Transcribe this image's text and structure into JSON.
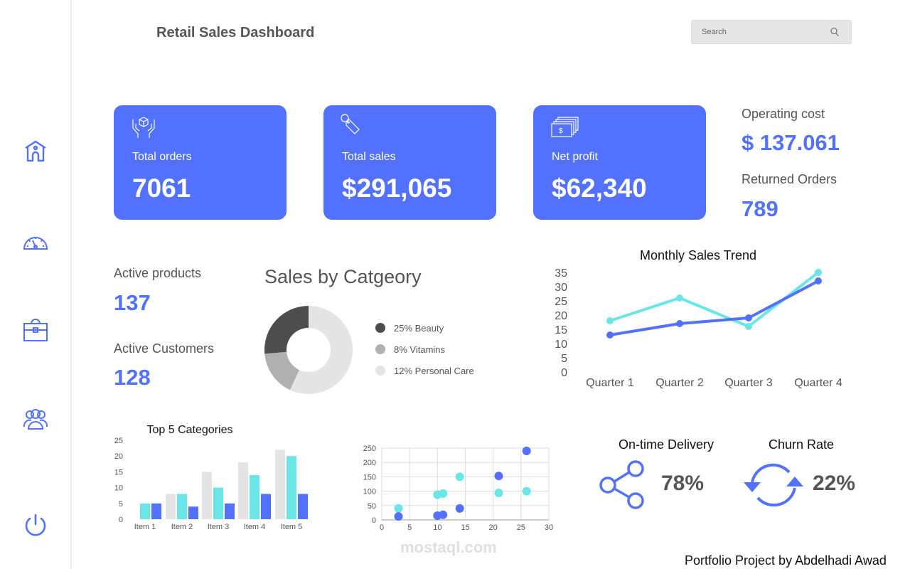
{
  "header": {
    "title": "Retail Sales Dashboard",
    "search_placeholder": "Search"
  },
  "sidebar": {
    "items": [
      {
        "icon": "home-icon"
      },
      {
        "icon": "speedometer-icon"
      },
      {
        "icon": "briefcase-icon"
      },
      {
        "icon": "users-icon"
      },
      {
        "icon": "power-icon"
      }
    ]
  },
  "colors": {
    "accent": "#5271ff",
    "cyan": "#6ae6e6",
    "grey": "#e4e4e4",
    "dark": "#4d4d4d",
    "mid": "#b0b0b0"
  },
  "cards": [
    {
      "label": "Total orders",
      "value": "7061",
      "icon": "box-in-hands-icon"
    },
    {
      "label": "Total sales",
      "value": "$291,065",
      "icon": "price-tag-icon"
    },
    {
      "label": "Net profit",
      "value": "$62,340",
      "icon": "cash-stack-icon"
    }
  ],
  "stats": {
    "operating_cost_label": "Operating cost",
    "operating_cost_value": "$ 137.061",
    "returned_label": "Returned Orders",
    "returned_value": "789",
    "active_products_label": "Active products",
    "active_products_value": "137",
    "active_customers_label": "Active Customers",
    "active_customers_value": "128"
  },
  "kpis": {
    "delivery_label": "On-time Delivery",
    "delivery_value": "78%",
    "delivery_icon": "share-icon",
    "churn_label": "Churn Rate",
    "churn_value": "22%",
    "churn_icon": "refresh-icon"
  },
  "footer": {
    "credit": "Portfolio Project by Abdelhadi Awad",
    "watermark": "mostaql.com"
  },
  "chart_data": [
    {
      "type": "pie",
      "title": "Sales by Catgeory",
      "legend": [
        "25% Beauty",
        "8% Vitamins",
        "12% Personal Care"
      ],
      "values": [
        25,
        8,
        12
      ],
      "colors": [
        "#4d4d4d",
        "#b0b0b0",
        "#e4e4e4"
      ],
      "donut": true,
      "legend_placement": "right"
    },
    {
      "type": "line",
      "title": "Monthly Sales Trend",
      "categories": [
        "Quarter 1",
        "Quarter 2",
        "Quarter 3",
        "Quarter 4"
      ],
      "ylim": [
        0,
        35
      ],
      "yticks": [
        "0",
        "5",
        "10",
        "15",
        "20",
        "25",
        "30",
        "35"
      ],
      "series": [
        {
          "values": [
            18,
            26,
            16,
            35
          ],
          "color": "#6ae6e6"
        },
        {
          "values": [
            13,
            17,
            19,
            32
          ],
          "color": "#5271ff"
        }
      ],
      "grid": false
    },
    {
      "type": "bar",
      "title": "Top 5 Categories",
      "categories": [
        "Item 1",
        "Item 2",
        "Item 3",
        "Item 4",
        "Item 5"
      ],
      "ylim": [
        0,
        25
      ],
      "yticks": [
        "0",
        "5",
        "10",
        "15",
        "20",
        "25"
      ],
      "series": [
        {
          "values": [
            0,
            8,
            15,
            18,
            22
          ],
          "color": "#e4e4e4"
        },
        {
          "values": [
            5,
            8,
            10,
            14,
            20
          ],
          "color": "#6ae6e6"
        },
        {
          "values": [
            5,
            4,
            5,
            8,
            8
          ],
          "color": "#5271ff"
        }
      ],
      "grid": false
    },
    {
      "type": "scatter",
      "xlim": [
        0,
        30
      ],
      "ylim": [
        0,
        250
      ],
      "xticks": [
        "0",
        "5",
        "10",
        "15",
        "20",
        "25",
        "30"
      ],
      "yticks": [
        "0",
        "50",
        "100",
        "150",
        "200",
        "250"
      ],
      "grid": true,
      "series": [
        {
          "color": "#6ae6e6",
          "points": [
            [
              3,
              40
            ],
            [
              10,
              88
            ],
            [
              11,
              92
            ],
            [
              14,
              150
            ],
            [
              21,
              94
            ],
            [
              26,
              100
            ]
          ]
        },
        {
          "color": "#5271ff",
          "points": [
            [
              3,
              12
            ],
            [
              10,
              15
            ],
            [
              11,
              18
            ],
            [
              14,
              40
            ],
            [
              21,
              153
            ],
            [
              26,
              240
            ]
          ]
        }
      ]
    }
  ]
}
